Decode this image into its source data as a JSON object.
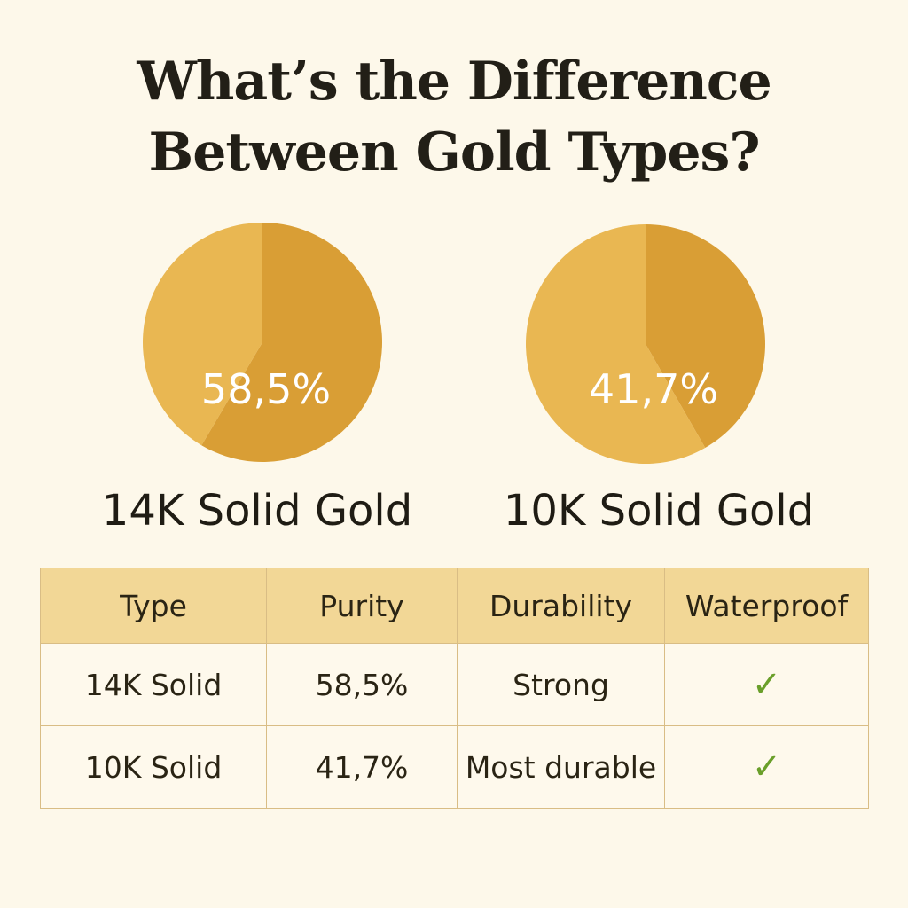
{
  "title_line1": "What’s the Difference",
  "title_line2": "Between Gold Types?",
  "colors": {
    "background": "#FDF8EA",
    "gold_dark": "#D99E35",
    "gold_light": "#E9B752",
    "header": "#F2D796",
    "check": "#6A9F2A"
  },
  "chart_data": [
    {
      "type": "pie",
      "label": "14K Solid Gold",
      "data_label": "58,5%",
      "values": [
        58.5,
        41.5
      ],
      "colors": [
        "#D99E35",
        "#E9B752"
      ]
    },
    {
      "type": "pie",
      "label": "10K Solid Gold",
      "data_label": "41,7%",
      "values": [
        41.7,
        58.3
      ],
      "colors": [
        "#D99E35",
        "#E9B752"
      ]
    }
  ],
  "table": {
    "headers": [
      "Type",
      "Purity",
      "Durability",
      "Waterproof"
    ],
    "rows": [
      {
        "type": "14K Solid",
        "purity": "58,5%",
        "durability": "Strong",
        "waterproof": "✓",
        "waterproof_icon": "check-icon"
      },
      {
        "type": "10K Solid",
        "purity": "41,7%",
        "durability": "Most durable",
        "waterproof": "✓",
        "waterproof_icon": "check-icon"
      }
    ]
  }
}
